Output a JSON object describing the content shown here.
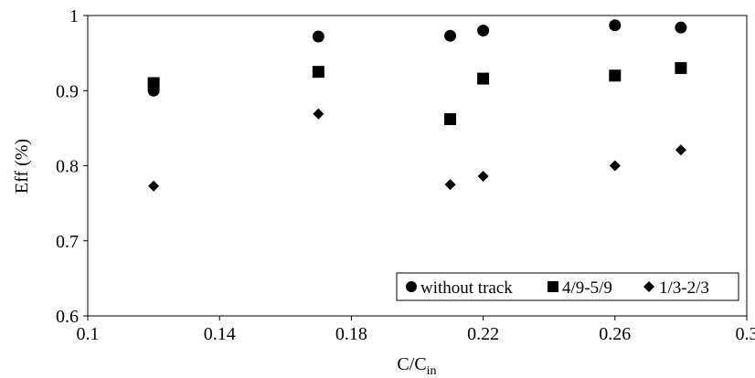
{
  "chart_data": {
    "type": "scatter",
    "title": "",
    "xlabel": "C/C",
    "xlabel_subscript": "in",
    "ylabel": "Eff (%)",
    "xlim": [
      0.1,
      0.3
    ],
    "ylim": [
      0.6,
      1.0
    ],
    "x_ticks": [
      "0.1",
      "0.14",
      "0.18",
      "0.22",
      "0.26",
      "0.3"
    ],
    "y_ticks": [
      "0.6",
      "0.7",
      "0.8",
      "0.9",
      "1"
    ],
    "grid": false,
    "legend_position": "bottom-right",
    "series": [
      {
        "name": "without track",
        "marker": "circle",
        "color": "#000000",
        "points": [
          {
            "x": 0.12,
            "y": 0.9
          },
          {
            "x": 0.17,
            "y": 0.972
          },
          {
            "x": 0.21,
            "y": 0.973
          },
          {
            "x": 0.22,
            "y": 0.98
          },
          {
            "x": 0.26,
            "y": 0.987
          },
          {
            "x": 0.28,
            "y": 0.984
          }
        ]
      },
      {
        "name": "4/9-5/9",
        "marker": "square",
        "color": "#000000",
        "points": [
          {
            "x": 0.12,
            "y": 0.91
          },
          {
            "x": 0.17,
            "y": 0.925
          },
          {
            "x": 0.21,
            "y": 0.862
          },
          {
            "x": 0.22,
            "y": 0.916
          },
          {
            "x": 0.26,
            "y": 0.92
          },
          {
            "x": 0.28,
            "y": 0.93
          }
        ]
      },
      {
        "name": "1/3-2/3",
        "marker": "diamond",
        "color": "#000000",
        "points": [
          {
            "x": 0.12,
            "y": 0.773
          },
          {
            "x": 0.17,
            "y": 0.869
          },
          {
            "x": 0.21,
            "y": 0.775
          },
          {
            "x": 0.22,
            "y": 0.786
          },
          {
            "x": 0.26,
            "y": 0.8
          },
          {
            "x": 0.28,
            "y": 0.821
          }
        ]
      }
    ]
  }
}
